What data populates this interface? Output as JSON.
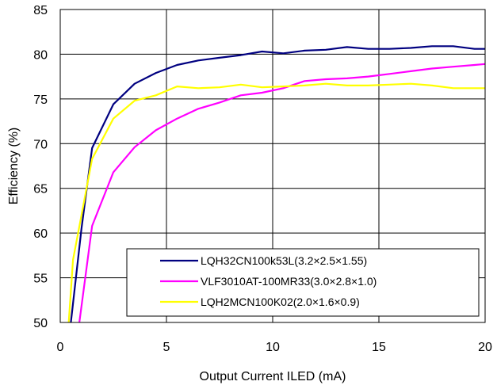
{
  "chart_data": {
    "type": "line",
    "xlabel": "Output Current ILED (mA)",
    "ylabel": "Efficiency  (%)",
    "xlim": [
      0,
      20
    ],
    "ylim": [
      50,
      85
    ],
    "xticks": [
      0,
      5,
      10,
      15,
      20
    ],
    "yticks": [
      50,
      55,
      60,
      65,
      70,
      75,
      80,
      85
    ],
    "grid": true,
    "legend_position": "bottom-right",
    "series": [
      {
        "name": "LQH32CN100k53L(3.2×2.5×1.55)",
        "color": "#000080",
        "x": [
          0.5,
          1.0,
          1.5,
          2.5,
          3.5,
          4.5,
          5.5,
          6.5,
          7.5,
          8.5,
          9.5,
          10.5,
          11.5,
          12.5,
          13.5,
          14.5,
          15.5,
          16.5,
          17.5,
          18.5,
          19.5,
          20.0
        ],
        "y": [
          50,
          60.5,
          69.5,
          74.4,
          76.7,
          77.9,
          78.8,
          79.3,
          79.6,
          79.9,
          80.3,
          80.1,
          80.4,
          80.5,
          80.8,
          80.6,
          80.6,
          80.7,
          80.9,
          80.9,
          80.6,
          80.6
        ]
      },
      {
        "name": "VLF3010AT-100MR33(3.0×2.8×1.0)",
        "color": "#ff00ff",
        "x": [
          0.9,
          1.5,
          2.5,
          3.5,
          4.5,
          5.5,
          6.5,
          7.5,
          8.5,
          9.5,
          10.5,
          11.5,
          12.5,
          13.5,
          14.5,
          15.5,
          16.5,
          17.5,
          18.5,
          19.5,
          20.0
        ],
        "y": [
          50,
          60.8,
          66.8,
          69.6,
          71.5,
          72.8,
          73.9,
          74.6,
          75.4,
          75.7,
          76.2,
          77.0,
          77.2,
          77.3,
          77.5,
          77.8,
          78.1,
          78.4,
          78.6,
          78.8,
          78.9
        ]
      },
      {
        "name": "LQH2MCN100K02(2.0×1.6×0.9)",
        "color": "#ffff00",
        "x": [
          0.4,
          0.6,
          1.0,
          1.5,
          2.5,
          3.5,
          4.5,
          5.5,
          6.5,
          7.5,
          8.5,
          9.5,
          10.5,
          11.5,
          12.5,
          13.5,
          14.5,
          15.5,
          16.5,
          17.5,
          18.5,
          19.5,
          20.0
        ],
        "y": [
          50,
          57,
          62,
          68.3,
          72.8,
          74.8,
          75.4,
          76.4,
          76.2,
          76.3,
          76.6,
          76.3,
          76.4,
          76.5,
          76.7,
          76.5,
          76.5,
          76.6,
          76.7,
          76.5,
          76.2,
          76.2,
          76.2
        ]
      }
    ]
  }
}
